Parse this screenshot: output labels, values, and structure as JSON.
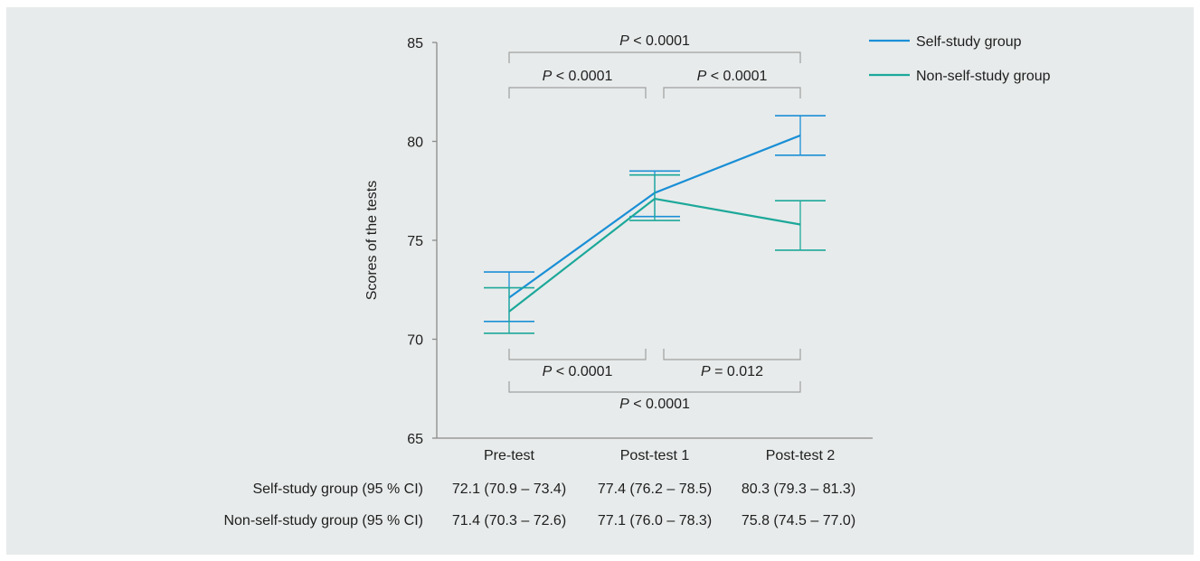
{
  "colors": {
    "background": "#e8ebeb",
    "self": "#1a8fd6",
    "nonself": "#1ca89a",
    "bracket": "#a0a0a0",
    "axis": "#8a8a8a"
  },
  "chart_data": {
    "type": "line",
    "ylabel": "Scores of the tests",
    "xlabel": "",
    "categories": [
      "Pre-test",
      "Post-test 1",
      "Post-test 2"
    ],
    "ylim": [
      65,
      85
    ],
    "yticks": [
      65,
      70,
      75,
      80,
      85
    ],
    "ytick_labels": [
      "65",
      "70",
      "75",
      "80",
      "85"
    ],
    "legend_position": "top-right",
    "series": [
      {
        "name": "Self-study group",
        "color": "#1a8fd6",
        "values": [
          72.1,
          77.4,
          80.3
        ],
        "ci_low": [
          70.9,
          76.2,
          79.3
        ],
        "ci_high": [
          73.4,
          78.5,
          81.3
        ],
        "table_label": "Self-study group (95 % CI)",
        "table_cells": [
          "72.1 (70.9 – 73.4)",
          "77.4 (76.2 – 78.5)",
          "80.3 (79.3 – 81.3)"
        ]
      },
      {
        "name": "Non-self-study group",
        "color": "#1ca89a",
        "values": [
          71.4,
          77.1,
          75.8
        ],
        "ci_low": [
          70.3,
          76.0,
          74.5
        ],
        "ci_high": [
          72.6,
          78.3,
          77.0
        ],
        "table_label": "Non-self-study group (95 % CI)",
        "table_cells": [
          "71.4 (70.3 – 72.6)",
          "77.1 (76.0 – 78.3)",
          "75.8 (74.5 – 77.0)"
        ]
      }
    ],
    "annotations": [
      {
        "from": 0,
        "to": 2,
        "side": "top",
        "tier": 1,
        "label": "< 0.0001"
      },
      {
        "from": 0,
        "to": 1,
        "side": "top",
        "tier": 2,
        "label": "< 0.0001"
      },
      {
        "from": 1,
        "to": 2,
        "side": "top",
        "tier": 2,
        "label": "< 0.0001"
      },
      {
        "from": 0,
        "to": 1,
        "side": "bottom",
        "tier": 2,
        "label": "< 0.0001"
      },
      {
        "from": 1,
        "to": 2,
        "side": "bottom",
        "tier": 2,
        "label": "= 0.012"
      },
      {
        "from": 0,
        "to": 2,
        "side": "bottom",
        "tier": 1,
        "label": "< 0.0001"
      }
    ],
    "p_symbol": "P"
  }
}
